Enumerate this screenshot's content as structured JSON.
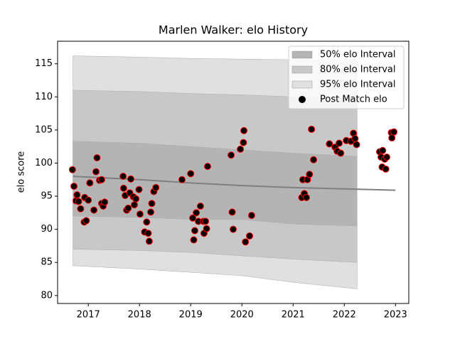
{
  "chart_data": {
    "type": "scatter",
    "title": "Marlen Walker: elo History",
    "y_label": "elo score",
    "xlim": [
      2016.4,
      2023.26
    ],
    "xticks": [
      2017,
      2018,
      2019,
      2020,
      2021,
      2022,
      2023
    ],
    "ylim": [
      78.8,
      118.4
    ],
    "yticks": [
      80,
      85,
      90,
      95,
      100,
      105,
      110,
      115
    ],
    "legend": "upper right",
    "series": [
      {
        "type": "band",
        "name": "95% elo Interval",
        "color": "#e0e0e0",
        "x": [
          2016.7,
          2018,
          2019,
          2020,
          2021,
          2022.25
        ],
        "upper": [
          116.2,
          116,
          115.8,
          115.7,
          115.6,
          115.5
        ],
        "lower": [
          84.5,
          84,
          83.5,
          83,
          82,
          81
        ]
      },
      {
        "type": "band",
        "name": "80% elo Interval",
        "color": "#c8c8c8",
        "x": [
          2016.7,
          2018,
          2019,
          2020,
          2021,
          2022.25
        ],
        "upper": [
          111,
          110.8,
          110.5,
          110.3,
          110,
          109.7
        ],
        "lower": [
          87,
          86.8,
          86.5,
          86,
          85.5,
          85
        ]
      },
      {
        "type": "band",
        "name": "50% elo Interval",
        "color": "#b4b4b4",
        "x": [
          2016.7,
          2018,
          2019,
          2020,
          2021,
          2022.25
        ],
        "upper": [
          103.3,
          103,
          102.5,
          102,
          101.5,
          101
        ],
        "lower": [
          92,
          91.8,
          91.5,
          91.5,
          90.8,
          90.5
        ]
      },
      {
        "type": "line",
        "color": "#808080",
        "x": [
          2016.7,
          2018,
          2019,
          2020,
          2021,
          2022,
          2023
        ],
        "values": [
          98,
          97.5,
          97,
          96.6,
          96.3,
          96.1,
          95.9
        ]
      },
      {
        "type": "points",
        "name": "Post Match elo",
        "color": "#000000",
        "edge": "#ff0000",
        "x": [
          2016.69,
          2016.72,
          2016.78,
          2016.76,
          2016.81,
          2016.85,
          2016.92,
          2016.96,
          2016.93,
          2017.0,
          2017.03,
          2017.11,
          2017.15,
          2017.17,
          2017.22,
          2017.26,
          2017.26,
          2017.29,
          2017.32,
          2017.68,
          2017.69,
          2017.72,
          2017.75,
          2017.78,
          2017.81,
          2017.83,
          2017.88,
          2017.9,
          2017.93,
          2017.99,
          2018.01,
          2018.1,
          2018.14,
          2018.17,
          2018.19,
          2018.22,
          2018.24,
          2018.28,
          2018.32,
          2018.83,
          2019.0,
          2019.04,
          2019.06,
          2019.08,
          2019.11,
          2019.15,
          2019.19,
          2019.25,
          2019.26,
          2019.31,
          2019.29,
          2019.33,
          2019.79,
          2019.81,
          2019.83,
          2019.97,
          2020.03,
          2020.04,
          2020.07,
          2020.15,
          2020.19,
          2021.17,
          2021.19,
          2021.22,
          2021.26,
          2021.28,
          2021.32,
          2021.36,
          2021.4,
          2021.71,
          2021.82,
          2021.86,
          2021.9,
          2021.93,
          2022.04,
          2022.13,
          2022.18,
          2022.21,
          2022.24,
          2022.69,
          2022.72,
          2022.74,
          2022.75,
          2022.79,
          2022.81,
          2022.83,
          2022.92,
          2022.93,
          2022.97
        ],
        "values": [
          99.0,
          96.5,
          95.2,
          94.3,
          94.2,
          93.1,
          91.1,
          91.3,
          94.8,
          94.4,
          97.0,
          92.9,
          98.7,
          100.8,
          97.4,
          97.5,
          93.9,
          93.5,
          94.1,
          98.0,
          96.2,
          95.1,
          92.9,
          93.2,
          95.5,
          97.6,
          94.9,
          93.7,
          94.6,
          96.0,
          92.3,
          89.6,
          91.1,
          89.4,
          88.2,
          92.6,
          93.9,
          95.7,
          96.3,
          97.5,
          98.4,
          91.7,
          88.4,
          89.8,
          92.5,
          91.2,
          93.5,
          91.2,
          89.4,
          90.1,
          91.2,
          99.5,
          101.2,
          92.6,
          90.0,
          102.1,
          103.1,
          104.9,
          88.1,
          89.0,
          92.1,
          94.8,
          97.5,
          95.4,
          94.8,
          97.5,
          98.3,
          105.1,
          100.5,
          102.9,
          102.4,
          101.8,
          103.0,
          101.5,
          103.4,
          103.3,
          104.5,
          103.7,
          102.8,
          101.7,
          100.9,
          99.4,
          101.9,
          100.6,
          99.1,
          100.9,
          104.6,
          103.8,
          104.7
        ]
      }
    ]
  }
}
